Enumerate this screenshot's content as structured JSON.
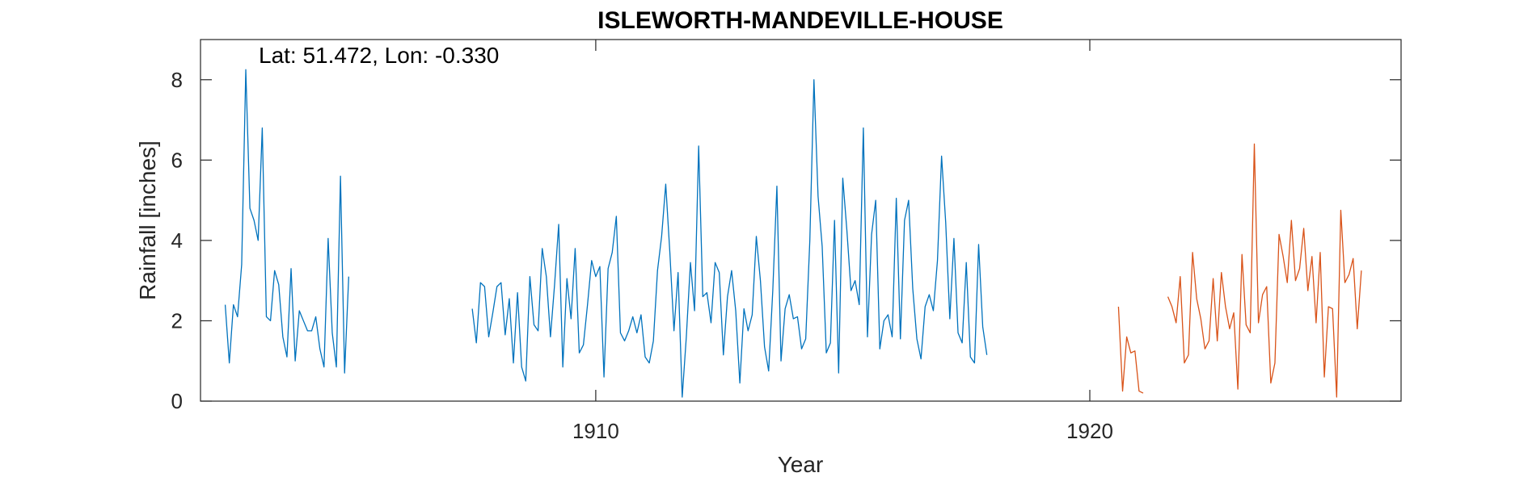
{
  "chart_data": {
    "type": "line",
    "title": "ISLEWORTH-MANDEVILLE-HOUSE",
    "annotation": "Lat: 51.472, Lon: -0.330",
    "xlabel": "Year",
    "ylabel": "Rainfall [inches]",
    "xlim": [
      1902.0,
      1926.3
    ],
    "ylim": [
      0,
      9
    ],
    "xticks": [
      1910,
      1920
    ],
    "xtick_labels": [
      "1910",
      "1920"
    ],
    "yticks": [
      0,
      2,
      4,
      6,
      8
    ],
    "ytick_labels": [
      "0",
      "2",
      "4",
      "6",
      "8"
    ],
    "grid": false,
    "box": true,
    "series": [
      {
        "color": "#0072BD",
        "segments": [
          {
            "start": 1902.5,
            "step": 0.08333,
            "values": [
              2.4,
              0.95,
              2.4,
              2.1,
              3.4,
              8.25,
              4.8,
              4.5,
              4.0,
              6.8,
              2.1,
              2.0,
              3.25,
              2.9,
              1.6,
              1.1,
              3.3,
              1.0,
              2.25,
              2.0,
              1.75,
              1.75,
              2.1,
              1.3,
              0.85,
              4.05,
              1.7,
              0.85,
              5.6,
              0.7,
              3.1
            ]
          },
          {
            "start": 1907.5,
            "step": 0.08333,
            "values": [
              2.3,
              1.45,
              2.95,
              2.85,
              1.6,
              2.2,
              2.85,
              2.95,
              1.65,
              2.55,
              0.95,
              2.7,
              0.85,
              0.5,
              3.1,
              1.9,
              1.75,
              3.8,
              3.1,
              1.6,
              2.9,
              4.4,
              0.85,
              3.05,
              2.05,
              3.8,
              1.2,
              1.4,
              2.4,
              3.5,
              3.1,
              3.35,
              0.6,
              3.3,
              3.7,
              4.6,
              1.7,
              1.5,
              1.75,
              2.1,
              1.7,
              2.15,
              1.1,
              0.95,
              1.5,
              3.25,
              4.1,
              5.4,
              3.7,
              1.75,
              3.2,
              0.1,
              1.6,
              3.45,
              2.25,
              6.35,
              2.6,
              2.7,
              1.95,
              3.45,
              3.2,
              1.15,
              2.6,
              3.25,
              2.25,
              0.45,
              2.3,
              1.75,
              2.15,
              4.1,
              3.0,
              1.35,
              0.75,
              2.75,
              5.35,
              1.0,
              2.3,
              2.65,
              2.05,
              2.1,
              1.3,
              1.55,
              4.0,
              8.0,
              5.1,
              3.85,
              1.2,
              1.45,
              4.5,
              0.7,
              5.55,
              4.25,
              2.75,
              3.0,
              2.4,
              6.8,
              1.6,
              4.15,
              5.0,
              1.3,
              2.0,
              2.15,
              1.6,
              5.05,
              1.55,
              4.5,
              5.0,
              2.8,
              1.55,
              1.05,
              2.35,
              2.65,
              2.25,
              3.5,
              6.1,
              4.45,
              2.05,
              4.05,
              1.7,
              1.45,
              3.45,
              1.1,
              0.95,
              3.9,
              1.85,
              1.15
            ]
          }
        ]
      },
      {
        "color": "#D95319",
        "segments": [
          {
            "start": 1920.58,
            "step": 0.08333,
            "values": [
              2.35,
              0.25,
              1.6,
              1.2,
              1.25,
              0.25,
              0.2
            ]
          },
          {
            "start": 1921.58,
            "step": 0.08333,
            "values": [
              2.6,
              2.35,
              1.95,
              3.1,
              0.95,
              1.15,
              3.7,
              2.55,
              2.05,
              1.3,
              1.5,
              3.05,
              1.5,
              3.2,
              2.35,
              1.8,
              2.2,
              0.3,
              3.65,
              1.9,
              1.7,
              6.4,
              1.95,
              2.65,
              2.85,
              0.45,
              0.95,
              4.15,
              3.6,
              2.95,
              4.5,
              3.0,
              3.3,
              4.3,
              2.75,
              3.6,
              1.95,
              3.7,
              0.6,
              2.35,
              2.3,
              0.1,
              4.75,
              2.95,
              3.15,
              3.55,
              1.8,
              3.25
            ]
          }
        ]
      }
    ]
  }
}
